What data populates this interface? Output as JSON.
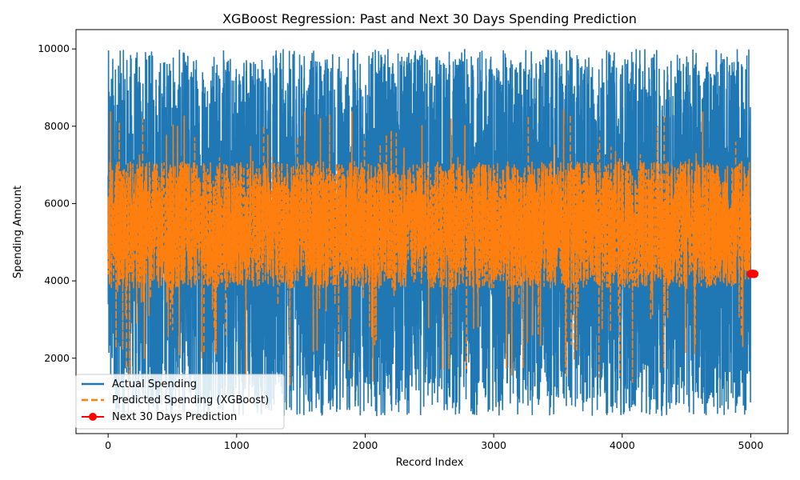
{
  "chart_data": {
    "type": "line",
    "title": "XGBoost Regression: Past and Next 30 Days Spending Prediction",
    "xlabel": "Record Index",
    "ylabel": "Spending Amount",
    "xlim": [
      -250,
      5290
    ],
    "ylim": [
      50,
      10500
    ],
    "x_ticks": [
      0,
      1000,
      2000,
      3000,
      4000,
      5000
    ],
    "y_ticks": [
      2000,
      4000,
      6000,
      8000,
      10000
    ],
    "grid": false,
    "legend_position": "lower-left",
    "series": [
      {
        "name": "Actual Spending",
        "style": "solid",
        "color": "#1f77b4",
        "x_range": [
          0,
          4999
        ],
        "value_min": 500,
        "value_max": 10000,
        "value_mean": 5200
      },
      {
        "name": "Predicted Spending (XGBoost)",
        "style": "dashed",
        "color": "#ff7f0e",
        "x_range": [
          0,
          4999
        ],
        "value_min": 1200,
        "value_max": 8500,
        "value_mean": 5200
      },
      {
        "name": "Next 30 Days Prediction",
        "style": "solid-with-markers",
        "color": "#ff0000",
        "x": [
          5000,
          5001,
          5002,
          5003,
          5004,
          5005,
          5006,
          5007,
          5008,
          5009,
          5010,
          5011,
          5012,
          5013,
          5014,
          5015,
          5016,
          5017,
          5018,
          5019,
          5020,
          5021,
          5022,
          5023,
          5024,
          5025,
          5026,
          5027,
          5028,
          5029
        ],
        "values": [
          4180,
          4180,
          4180,
          4180,
          4180,
          4180,
          4180,
          4180,
          4180,
          4180,
          4180,
          4180,
          4180,
          4180,
          4180,
          4180,
          4180,
          4180,
          4180,
          4180,
          4180,
          4180,
          4180,
          4180,
          4180,
          4180,
          4180,
          4180,
          4180,
          4180
        ]
      }
    ]
  }
}
